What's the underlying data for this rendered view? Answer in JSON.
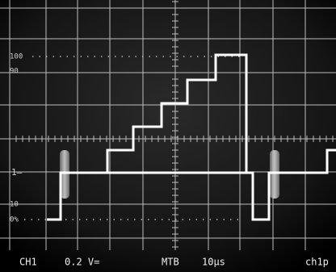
{
  "graticule_labels": [
    "100",
    "90",
    "1–",
    "10",
    "0%"
  ],
  "status_bar": {
    "channel": "CH1",
    "scale": "0.2 V=",
    "timebase": "MTB",
    "time_per_div": "10μs",
    "trigger": "ch1p"
  }
}
